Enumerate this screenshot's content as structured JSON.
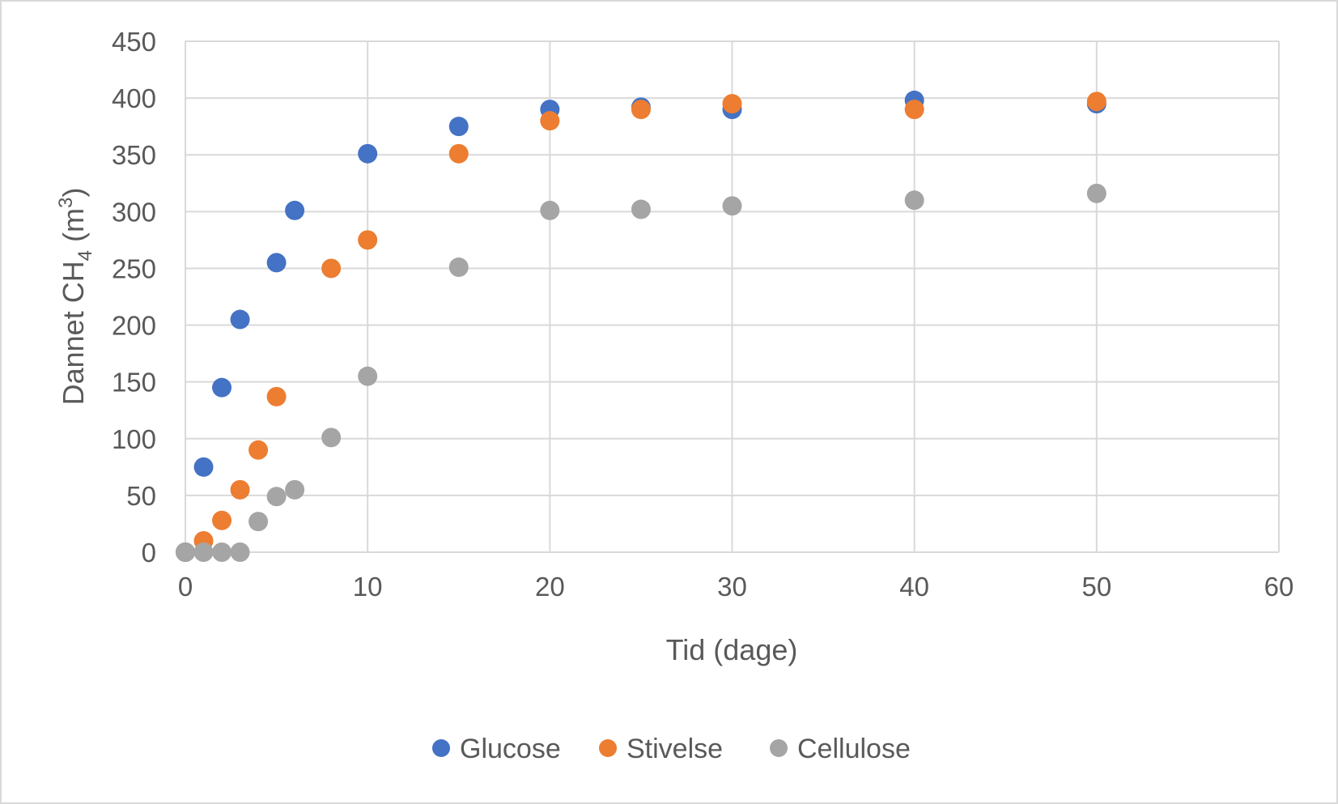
{
  "chart_data": {
    "type": "scatter",
    "title": "",
    "xlabel": "Tid (dage)",
    "ylabel_parts": [
      "Dannet CH",
      "4",
      " (m",
      "3",
      ")"
    ],
    "xlim": [
      0,
      60
    ],
    "ylim": [
      0,
      450
    ],
    "xticks": [
      0,
      10,
      20,
      30,
      40,
      50,
      60
    ],
    "yticks": [
      0,
      50,
      100,
      150,
      200,
      250,
      300,
      350,
      400,
      450
    ],
    "grid": true,
    "legend_position": "bottom",
    "series": [
      {
        "name": "Glucose",
        "color": "#4472C4",
        "x": [
          0,
          1,
          2,
          3,
          5,
          6,
          10,
          15,
          20,
          25,
          30,
          40,
          50
        ],
        "y": [
          0,
          75,
          145,
          205,
          255,
          301,
          351,
          375,
          390,
          392,
          390,
          398,
          395
        ]
      },
      {
        "name": "Stivelse",
        "color": "#ED7D31",
        "x": [
          0,
          1,
          2,
          3,
          4,
          5,
          8,
          10,
          15,
          20,
          25,
          30,
          40,
          50
        ],
        "y": [
          0,
          10,
          28,
          55,
          90,
          137,
          250,
          275,
          351,
          380,
          390,
          395,
          390,
          397
        ]
      },
      {
        "name": "Cellulose",
        "color": "#A5A5A5",
        "x": [
          0,
          1,
          2,
          3,
          4,
          5,
          6,
          8,
          10,
          15,
          20,
          25,
          30,
          40,
          50
        ],
        "y": [
          0,
          0,
          0,
          0,
          27,
          49,
          55,
          101,
          155,
          251,
          301,
          302,
          305,
          310,
          316
        ]
      }
    ]
  }
}
